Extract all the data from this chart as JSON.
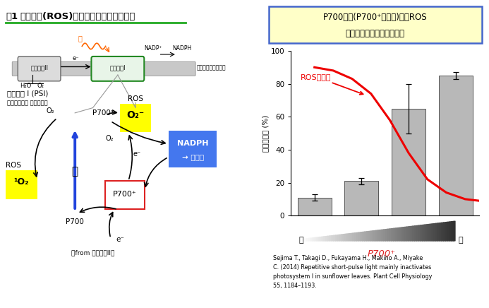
{
  "title_fig": "図1",
  "title_main": "活性酸素(ROS)生成と抑制のメカニズム",
  "bar_values": [
    11,
    21,
    65,
    85
  ],
  "bar_errors": [
    2,
    2,
    15,
    2
  ],
  "bar_color": "#b8b8b8",
  "bar_positions": [
    0,
    1,
    2,
    3
  ],
  "ros_curve_x": [
    0.0,
    0.4,
    0.8,
    1.2,
    1.6,
    2.0,
    2.4,
    2.8,
    3.2,
    3.5
  ],
  "ros_curve_y": [
    90,
    88,
    83,
    74,
    58,
    38,
    22,
    14,
    10,
    9
  ],
  "ylabel": "光合成活性 (%)",
  "xlabel_low": "低",
  "xlabel_high": "高",
  "ylim": [
    0,
    100
  ],
  "ros_label": "ROS生成量",
  "box_text_line1": "P700酸化(P700⁺の蓄積)は、ROS",
  "box_text_line2": "生成の危機を抑制している",
  "reference": "Sejima T., Takagi D., Fukayama H., Makino A., Miyake\nC. (2014) Repetitive short-pulse light mainly inactivates\nphotosystem I in sunflower leaves. Plant Cell Physiology\n55, 1184–1193.",
  "box_bg": "#ffffc8",
  "box_border": "#4466cc",
  "ros_color": "#ee0000",
  "bar_edge_color": "#555555",
  "title_underline_color": "#22aa22",
  "background_color": "#ffffff",
  "ps2_label": "光化学系II",
  "ps1_label": "光化学系I",
  "psi_label1": "光化学系 I (PSI)",
  "psi_label2": "（光酸化還元 サイクル）",
  "thylakoid_label": "葉綠体チラコイド膜",
  "nadph_line1": "NADPH",
  "nadph_line2": "→ 光合成",
  "ros_box_label": "ROS",
  "o2minus_label": "O₂⁻",
  "roso2_label": "ROS",
  "singo2_label": "¹O₂",
  "hikari_label": "光",
  "from_label": "（from 光化学系II）",
  "p700plus_xlabel": "P700⁺"
}
